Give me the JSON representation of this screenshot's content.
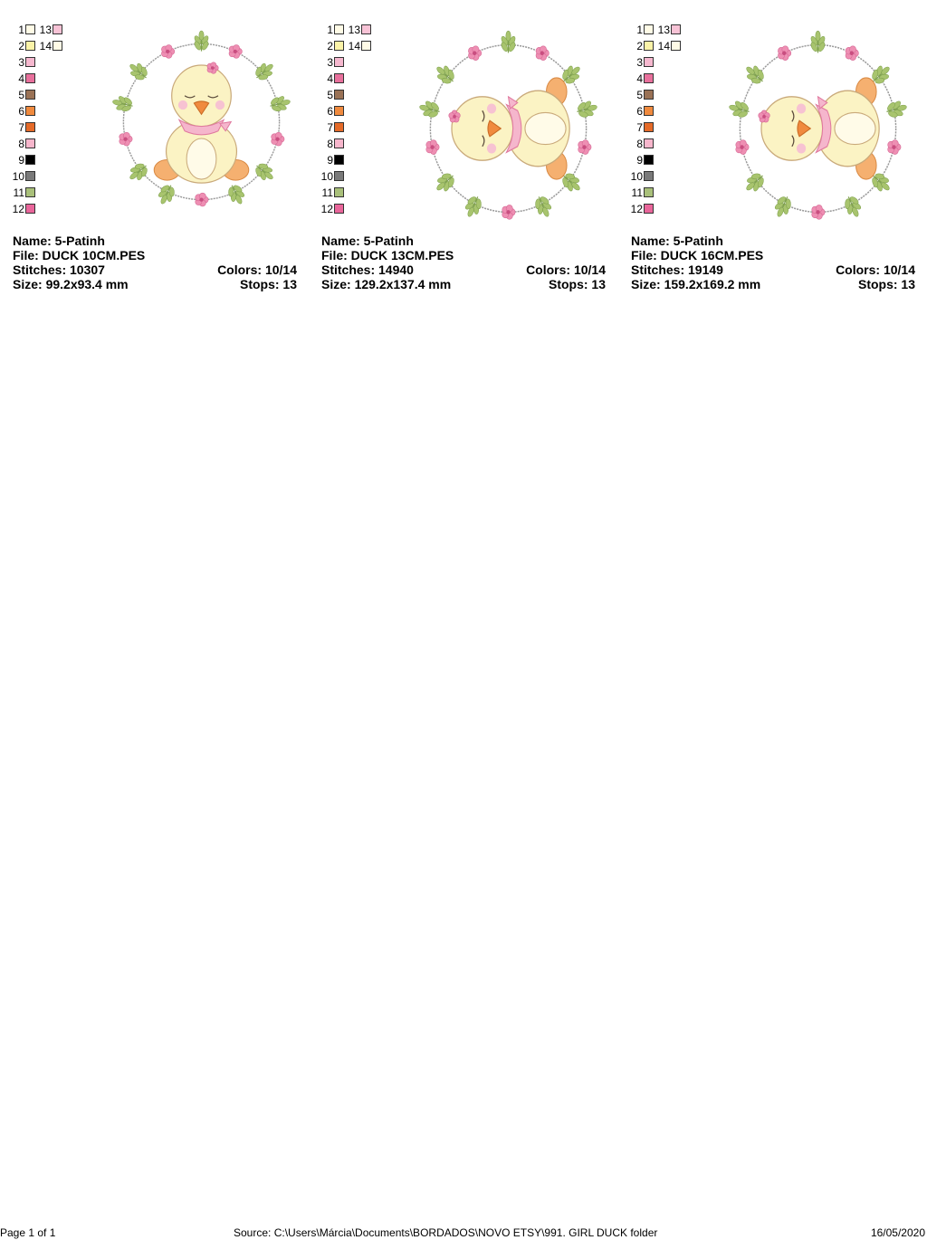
{
  "designs": [
    {
      "name_label": "Name: 5-Patinh",
      "file_label": "File: DUCK 10CM.PES",
      "stitches_label": "Stitches: 10307",
      "colors_label": "Colors: 10/14",
      "size_label": "Size: 99.2x93.4 mm",
      "stops_label": "Stops: 13",
      "orientation": "upright"
    },
    {
      "name_label": "Name: 5-Patinh",
      "file_label": "File: DUCK 13CM.PES",
      "stitches_label": "Stitches: 14940",
      "colors_label": "Colors: 10/14",
      "size_label": "Size: 129.2x137.4 mm",
      "stops_label": "Stops: 13",
      "orientation": "rotated"
    },
    {
      "name_label": "Name: 5-Patinh",
      "file_label": "File: DUCK 16CM.PES",
      "stitches_label": "Stitches: 19149",
      "colors_label": "Colors: 10/14",
      "size_label": "Size: 159.2x169.2 mm",
      "stops_label": "Stops: 13",
      "orientation": "rotated"
    }
  ],
  "legend": [
    {
      "a": "1",
      "color_a": "#fffbe6",
      "b": "13",
      "color_b": "#f8c3d6"
    },
    {
      "a": "2",
      "color_a": "#fbf3a8",
      "b": "14",
      "color_b": "#fffbe6"
    },
    {
      "a": "3",
      "color_a": "#f6b8cf"
    },
    {
      "a": "4",
      "color_a": "#e8709c"
    },
    {
      "a": "5",
      "color_a": "#9a7256"
    },
    {
      "a": "6",
      "color_a": "#f08a3e"
    },
    {
      "a": "7",
      "color_a": "#e56a28"
    },
    {
      "a": "8",
      "color_a": "#f7b6cc"
    },
    {
      "a": "9",
      "color_a": "#000000"
    },
    {
      "a": "10",
      "color_a": "#7a7a7a"
    },
    {
      "a": "11",
      "color_a": "#a9c07a"
    },
    {
      "a": "12",
      "color_a": "#e9659a"
    }
  ],
  "footer": {
    "page": "Page 1 of 1",
    "source": "Source: C:\\Users\\Márcia\\Documents\\BORDADOS\\NOVO ETSY\\991. GIRL DUCK folder",
    "date": "16/05/2020"
  }
}
